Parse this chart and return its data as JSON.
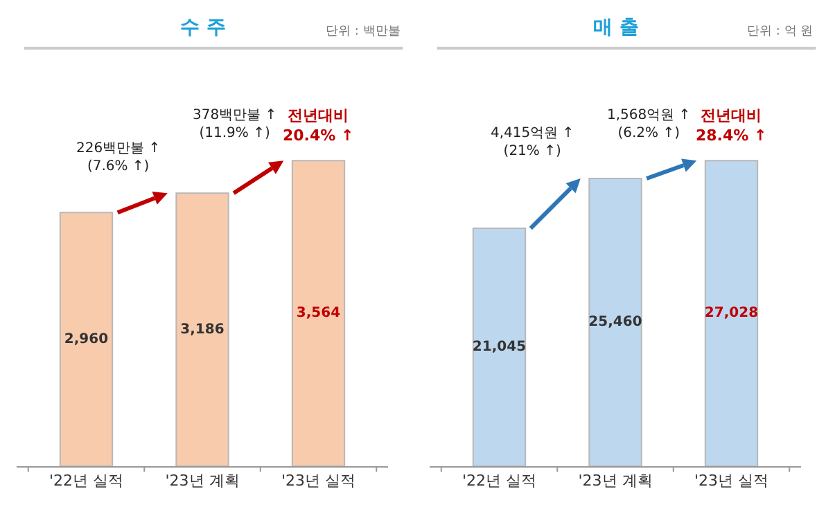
{
  "chart_data": [
    {
      "type": "bar",
      "title": "수 주",
      "subtitle": "단위 : 백만불",
      "categories": [
        "'22년 실적",
        "'23년 계획",
        "'23년 실적"
      ],
      "values": [
        2960,
        3186,
        3564
      ],
      "color": "#f8cbad",
      "value_labels": [
        "2,960",
        "3,186",
        "3,564"
      ],
      "annotations": [
        "226백만불 ↑\n(7.6% ↑)",
        "378백만불 ↑\n(11.9% ↑)",
        "전년대비\n20.4% ↑"
      ]
    },
    {
      "type": "bar",
      "title": "매 출",
      "subtitle": "단위 : 억 원",
      "categories": [
        "'22년 실적",
        "'23년 계획",
        "'23년 실적"
      ],
      "values": [
        21045,
        25460,
        27028
      ],
      "color": "#bdd7ee",
      "value_labels": [
        "21,045",
        "25,460",
        "27,028"
      ],
      "annotations": [
        "4,415억원 ↑\n(21% ↑)",
        "1,568억원 ↑\n(6.2% ↑)",
        "전년대비\n28.4% ↑"
      ]
    }
  ]
}
